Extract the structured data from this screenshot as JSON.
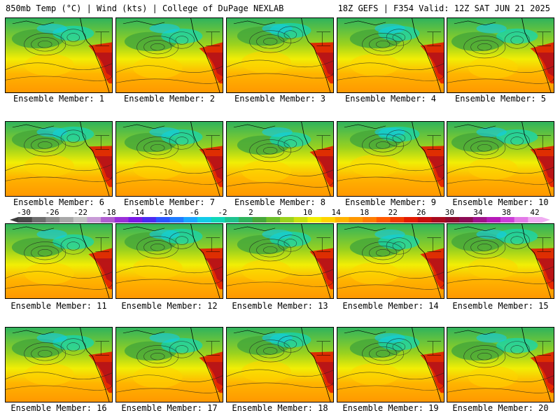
{
  "header": {
    "title_left": "850mb Temp (°C) | Wind (kts) | College of DuPage NEXLAB",
    "title_right": "18Z GEFS | F354 Valid: 12Z SAT JUN 21 2025"
  },
  "panels": [
    {
      "label": "Ensemble Member: 1"
    },
    {
      "label": "Ensemble Member: 2"
    },
    {
      "label": "Ensemble Member: 3"
    },
    {
      "label": "Ensemble Member: 4"
    },
    {
      "label": "Ensemble Member: 5"
    },
    {
      "label": "Ensemble Member: 6"
    },
    {
      "label": "Ensemble Member: 7"
    },
    {
      "label": "Ensemble Member: 8"
    },
    {
      "label": "Ensemble Member: 9"
    },
    {
      "label": "Ensemble Member: 10"
    },
    {
      "label": "Ensemble Member: 11"
    },
    {
      "label": "Ensemble Member: 12"
    },
    {
      "label": "Ensemble Member: 13"
    },
    {
      "label": "Ensemble Member: 14"
    },
    {
      "label": "Ensemble Member: 15"
    },
    {
      "label": "Ensemble Member: 16"
    },
    {
      "label": "Ensemble Member: 17"
    },
    {
      "label": "Ensemble Member: 18"
    },
    {
      "label": "Ensemble Member: 19"
    },
    {
      "label": "Ensemble Member: 20"
    }
  ],
  "colorbar": {
    "ticks": [
      "-30",
      "-26",
      "-22",
      "-18",
      "-14",
      "-10",
      "-6",
      "-2",
      "2",
      "6",
      "10",
      "14",
      "18",
      "22",
      "26",
      "30",
      "34",
      "38",
      "42"
    ],
    "colors": [
      "#4a4a4a",
      "#6e6e6e",
      "#8c8c8c",
      "#a8a8a8",
      "#c3c3c3",
      "#c89bd6",
      "#b05fd0",
      "#9a2fd8",
      "#7a19e6",
      "#4b2bf2",
      "#2a55ff",
      "#1e7cff",
      "#1aa6ff",
      "#12cbe8",
      "#10d7b8",
      "#1ec38f",
      "#2fb35d",
      "#46a83a",
      "#6cbf2a",
      "#9bd21e",
      "#c9e010",
      "#f1ee05",
      "#ffd400",
      "#ffb400",
      "#ff9800",
      "#ff7d00",
      "#ff5a00",
      "#f23a00",
      "#e21b00",
      "#c90d0d",
      "#a80a1f",
      "#8e0a2e",
      "#8c0c55",
      "#a0138a",
      "#b51ab8",
      "#cc3fd8",
      "#e37ae8",
      "#f0adf2"
    ]
  }
}
